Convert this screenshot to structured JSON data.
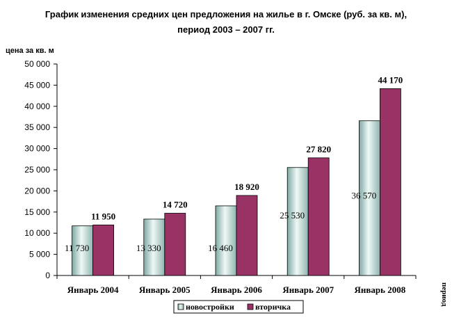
{
  "chart_data": {
    "type": "bar",
    "title_line1": "График изменения средних цен предложения на жилье в г. Омске (руб. за кв. м),",
    "title_line2": "период 2003 – 2007 гг.",
    "ylabel": "цена за кв. м",
    "xlabel": "период",
    "categories": [
      "Январь 2004",
      "Январь 2005",
      "Январь 2006",
      "Январь 2007",
      "Январь 2008"
    ],
    "ylim": [
      0,
      50000
    ],
    "yticks": [
      "0",
      "5 000",
      "10 000",
      "15 000",
      "20 000",
      "25 000",
      "30 000",
      "35 000",
      "40 000",
      "45 000",
      "50 000"
    ],
    "grid": false,
    "legend": "bottom",
    "series": [
      {
        "name": "новостройки",
        "values": [
          11730,
          13330,
          16460,
          25530,
          36570
        ],
        "labels": [
          "11 730",
          "13 330",
          "16 460",
          "25 530",
          "36 570"
        ],
        "color": "#c7e0dc"
      },
      {
        "name": "вторичка",
        "values": [
          11950,
          14720,
          18920,
          27820,
          44170
        ],
        "labels": [
          "11 950",
          "14 720",
          "18 920",
          "27 820",
          "44 170"
        ],
        "color": "#993366"
      }
    ]
  }
}
